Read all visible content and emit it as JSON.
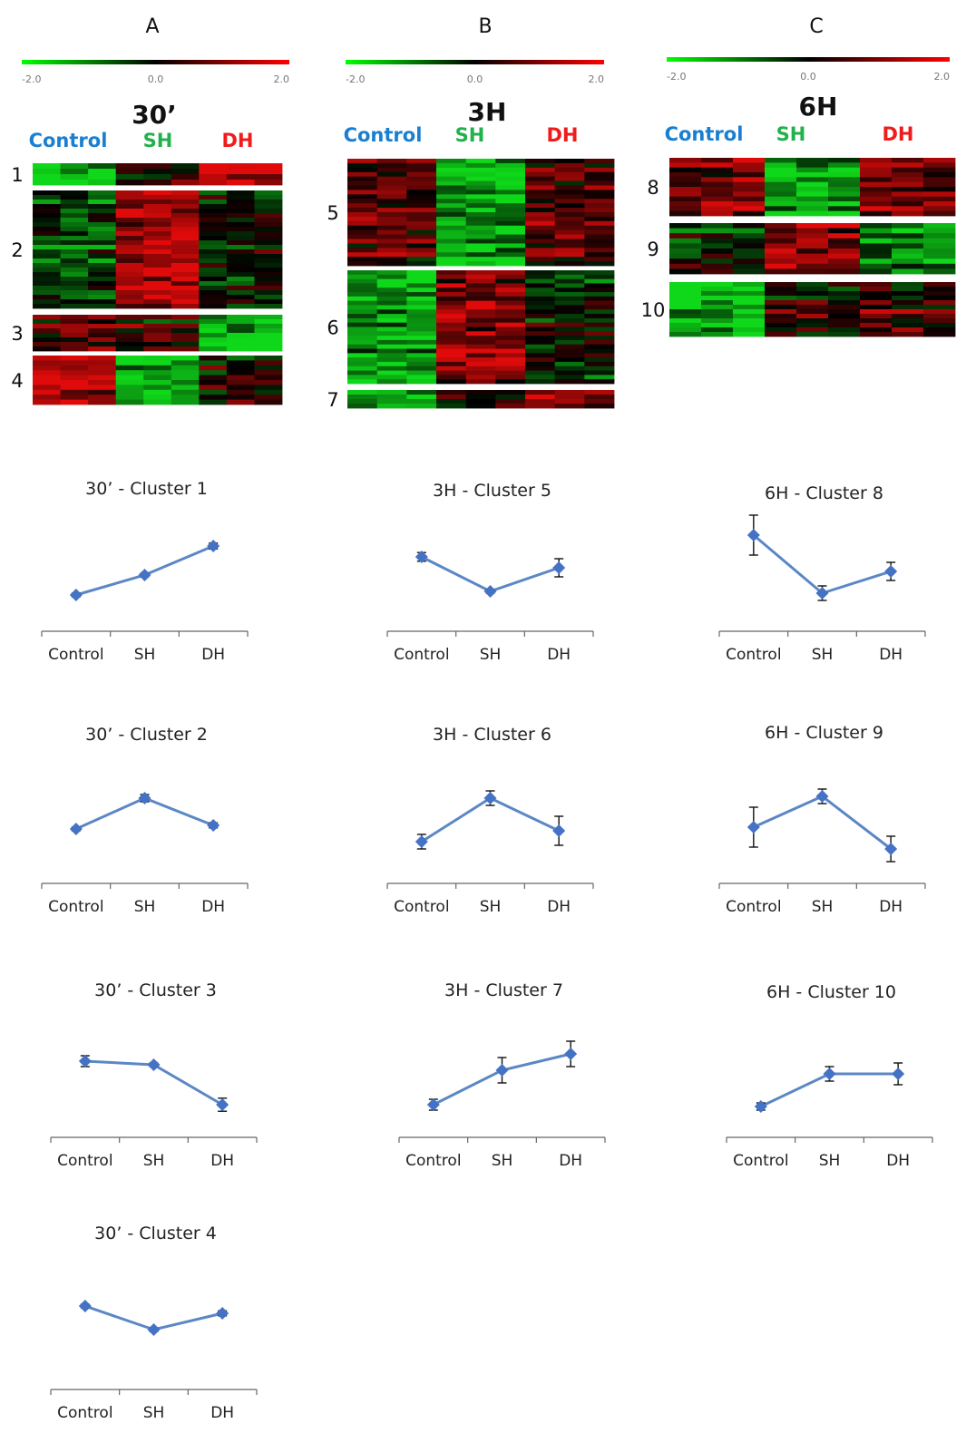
{
  "panels": [
    {
      "letter": "A",
      "scale": [
        "-2.0",
        "0.0",
        "2.0"
      ],
      "time": "30’",
      "groups": [
        "Control",
        "SH",
        "DH"
      ],
      "clusters": [
        {
          "id": "1",
          "rows": 4,
          "pattern": [
            -0.9,
            0.05,
            0.7
          ]
        },
        {
          "id": "2",
          "rows": 26,
          "pattern": [
            -0.3,
            0.75,
            -0.1
          ]
        },
        {
          "id": "3",
          "rows": 8,
          "pattern": [
            0.25,
            0.15,
            -0.85
          ]
        },
        {
          "id": "4",
          "rows": 10,
          "pattern": [
            0.85,
            -0.8,
            0.05
          ]
        }
      ]
    },
    {
      "letter": "B",
      "scale": [
        "-2.0",
        "0.0",
        "2.0"
      ],
      "time": "3H",
      "groups": [
        "Control",
        "SH",
        "DH"
      ],
      "clusters": [
        {
          "id": "5",
          "rows": 24,
          "pattern": [
            0.35,
            -0.85,
            0.3
          ]
        },
        {
          "id": "6",
          "rows": 26,
          "pattern": [
            -0.75,
            0.6,
            -0.1
          ]
        },
        {
          "id": "7",
          "rows": 4,
          "pattern": [
            -0.7,
            0.05,
            0.55
          ]
        }
      ]
    },
    {
      "letter": "C",
      "scale": [
        "-2.0",
        "0.0",
        "2.0"
      ],
      "time": "6H",
      "groups": [
        "Control",
        "SH",
        "DH"
      ],
      "clusters": [
        {
          "id": "8",
          "rows": 12,
          "pattern": [
            0.55,
            -0.8,
            0.5
          ]
        },
        {
          "id": "9",
          "rows": 10,
          "pattern": [
            -0.1,
            0.55,
            -0.65
          ]
        },
        {
          "id": "10",
          "rows": 12,
          "pattern": [
            -0.85,
            0.1,
            0.25
          ]
        }
      ]
    }
  ],
  "chart_data": [
    {
      "type": "line",
      "title": "30’ - Cluster 1",
      "categories": [
        "Control",
        "SH",
        "DH"
      ],
      "values": [
        -0.75,
        -0.2,
        0.6
      ],
      "error": [
        0.05,
        0.05,
        0.08
      ],
      "ylim": [
        -2,
        2
      ]
    },
    {
      "type": "line",
      "title": "30’ - Cluster 2",
      "categories": [
        "Control",
        "SH",
        "DH"
      ],
      "values": [
        -0.25,
        0.6,
        -0.15
      ],
      "error": [
        0.05,
        0.1,
        0.07
      ],
      "ylim": [
        -2,
        2
      ]
    },
    {
      "type": "line",
      "title": "30’ - Cluster 3",
      "categories": [
        "Control",
        "SH",
        "DH"
      ],
      "values": [
        0.35,
        0.25,
        -0.85
      ],
      "error": [
        0.15,
        0.05,
        0.18
      ],
      "ylim": [
        -2,
        2
      ]
    },
    {
      "type": "line",
      "title": "30’ - Cluster 4",
      "categories": [
        "Control",
        "SH",
        "DH"
      ],
      "values": [
        0.55,
        -0.1,
        0.35
      ],
      "error": [
        0.05,
        0.05,
        0.07
      ],
      "ylim": [
        -2,
        2
      ]
    },
    {
      "type": "line",
      "title": "3H - Cluster 5",
      "categories": [
        "Control",
        "SH",
        "DH"
      ],
      "values": [
        0.3,
        -0.65,
        0.0
      ],
      "error": [
        0.12,
        0.05,
        0.25
      ],
      "ylim": [
        -2,
        2
      ]
    },
    {
      "type": "line",
      "title": "3H - Cluster 6",
      "categories": [
        "Control",
        "SH",
        "DH"
      ],
      "values": [
        -0.6,
        0.6,
        -0.3
      ],
      "error": [
        0.2,
        0.2,
        0.4
      ],
      "ylim": [
        -2,
        2
      ]
    },
    {
      "type": "line",
      "title": "3H - Cluster 7",
      "categories": [
        "Control",
        "SH",
        "DH"
      ],
      "values": [
        -0.85,
        0.1,
        0.55
      ],
      "error": [
        0.15,
        0.35,
        0.35
      ],
      "ylim": [
        -2,
        2
      ]
    },
    {
      "type": "line",
      "title": "6H - Cluster 8",
      "categories": [
        "Control",
        "SH",
        "DH"
      ],
      "values": [
        0.9,
        -0.7,
        -0.1
      ],
      "error": [
        0.55,
        0.2,
        0.25
      ],
      "ylim": [
        -2,
        2
      ]
    },
    {
      "type": "line",
      "title": "6H - Cluster 9",
      "categories": [
        "Control",
        "SH",
        "DH"
      ],
      "values": [
        -0.2,
        0.65,
        -0.8
      ],
      "error": [
        0.55,
        0.2,
        0.35
      ],
      "ylim": [
        -2,
        2
      ]
    },
    {
      "type": "line",
      "title": "6H - Cluster 10",
      "categories": [
        "Control",
        "SH",
        "DH"
      ],
      "values": [
        -0.9,
        0.0,
        0.0
      ],
      "error": [
        0.1,
        0.2,
        0.3
      ],
      "ylim": [
        -2,
        2
      ]
    }
  ],
  "colors": {
    "control": "#1a7fd1",
    "sh": "#22b14c",
    "dh": "#ee1c1c",
    "line": "#5b87c5",
    "marker": "#4472c4",
    "heat_low": "#00ff00",
    "heat_mid": "#000000",
    "heat_high": "#ff0000"
  }
}
